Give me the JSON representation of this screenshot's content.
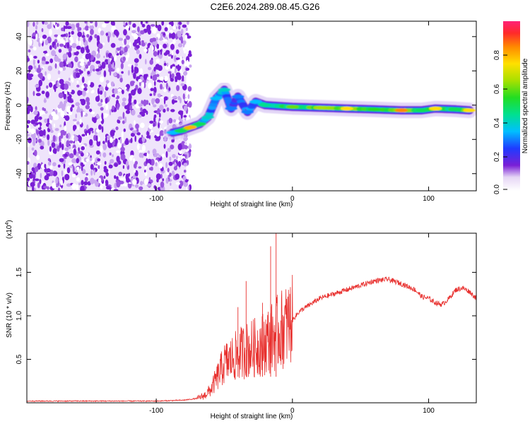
{
  "title": "C2E6.2024.289.08.45.G26",
  "chart_data": [
    {
      "type": "heatmap",
      "xlabel": "Height of straight line (km)",
      "ylabel": "Frequency (Hz)",
      "xlim": [
        -195,
        135
      ],
      "ylim": [
        -50,
        49
      ],
      "xticks": [
        -100,
        0,
        100
      ],
      "xtick_labels": [
        "-100",
        "0",
        "100"
      ],
      "yticks": [
        -40,
        -20,
        0,
        20,
        40
      ],
      "ytick_labels": [
        "-40",
        "-20",
        "0",
        "20",
        "40"
      ],
      "colorbar": {
        "label": "Normalized spectral amplitude",
        "range": [
          0,
          1
        ],
        "ticks": [
          0.0,
          0.2,
          0.4,
          0.6,
          0.8
        ],
        "tick_labels": [
          "0.0",
          "0.2",
          "0.4",
          "0.6",
          "0.8"
        ]
      },
      "noise_region": {
        "x_from": -195,
        "x_to": -78,
        "freq_from": -50,
        "freq_to": 49,
        "amplitude": 0.1
      },
      "signal_track": [
        {
          "x": -88,
          "freq": -16,
          "amplitude": 0.35
        },
        {
          "x": -82,
          "freq": -15,
          "amplitude": 0.5
        },
        {
          "x": -75,
          "freq": -13,
          "amplitude": 0.8
        },
        {
          "x": -68,
          "freq": -11,
          "amplitude": 0.5
        },
        {
          "x": -62,
          "freq": -7,
          "amplitude": 0.4
        },
        {
          "x": -56,
          "freq": 4,
          "amplitude": 0.35
        },
        {
          "x": -50,
          "freq": 9,
          "amplitude": 0.4
        },
        {
          "x": -45,
          "freq": -2,
          "amplitude": 0.3
        },
        {
          "x": -40,
          "freq": 5,
          "amplitude": 0.3
        },
        {
          "x": -33,
          "freq": -4,
          "amplitude": 0.3
        },
        {
          "x": -27,
          "freq": 2,
          "amplitude": 0.35
        },
        {
          "x": -20,
          "freq": 0,
          "amplitude": 0.45
        },
        {
          "x": 0,
          "freq": -1,
          "amplitude": 0.6
        },
        {
          "x": 20,
          "freq": -1.5,
          "amplitude": 0.65
        },
        {
          "x": 40,
          "freq": -2,
          "amplitude": 0.75
        },
        {
          "x": 60,
          "freq": -2.5,
          "amplitude": 0.55
        },
        {
          "x": 80,
          "freq": -3,
          "amplitude": 0.85
        },
        {
          "x": 95,
          "freq": -3,
          "amplitude": 0.5
        },
        {
          "x": 105,
          "freq": -2,
          "amplitude": 0.75
        },
        {
          "x": 120,
          "freq": -2.5,
          "amplitude": 0.5
        },
        {
          "x": 130,
          "freq": -3,
          "amplitude": 0.75
        }
      ]
    },
    {
      "type": "line",
      "xlabel": "Height of straight line (km)",
      "ylabel": "SNR (10 * v/v)",
      "y_scale_label": "(x10",
      "y_scale_exponent": "4",
      "color": "#e8302e",
      "xlim": [
        -195,
        135
      ],
      "ylim": [
        0,
        1.95
      ],
      "xticks": [
        -100,
        0,
        100
      ],
      "xtick_labels": [
        "-100",
        "0",
        "100"
      ],
      "yticks": [
        0.5,
        1.0,
        1.5
      ],
      "ytick_labels": [
        "0.5",
        "1.0",
        "1.5"
      ],
      "series": [
        {
          "x": [
            -195,
            -150,
            -100,
            -80,
            -70,
            -65,
            -60,
            -55,
            -50,
            -45,
            -40,
            -35,
            -30,
            -25,
            -20,
            -15,
            -10,
            -5,
            0,
            5,
            10,
            20,
            30,
            40,
            50,
            60,
            70,
            80,
            90,
            95,
            100,
            105,
            110,
            115,
            120,
            125,
            130,
            135
          ],
          "y": [
            0.02,
            0.02,
            0.02,
            0.03,
            0.05,
            0.08,
            0.15,
            0.3,
            0.45,
            0.5,
            0.55,
            0.6,
            0.62,
            0.65,
            0.7,
            0.75,
            0.82,
            0.88,
            0.95,
            1.05,
            1.1,
            1.2,
            1.25,
            1.3,
            1.35,
            1.4,
            1.42,
            1.37,
            1.3,
            1.22,
            1.2,
            1.15,
            1.13,
            1.2,
            1.3,
            1.32,
            1.28,
            1.2
          ]
        }
      ]
    }
  ]
}
